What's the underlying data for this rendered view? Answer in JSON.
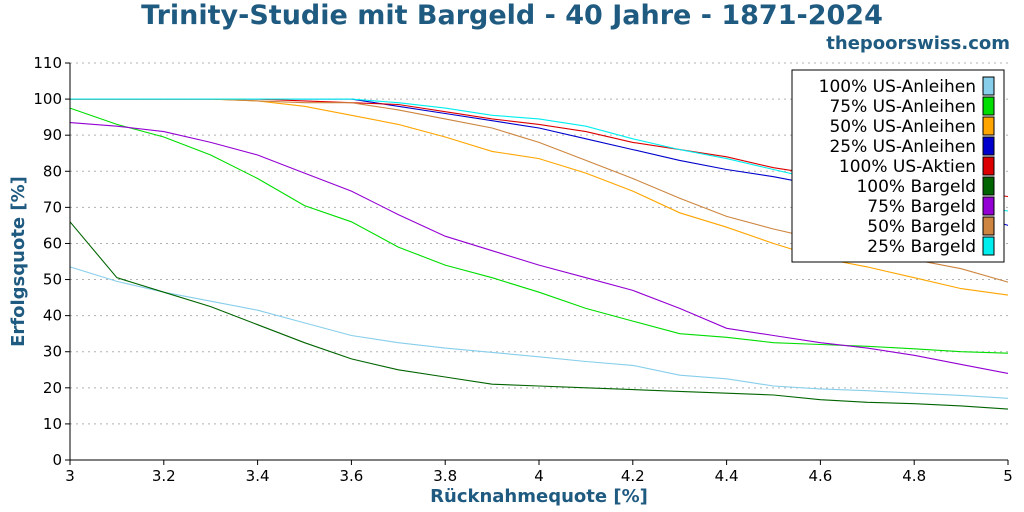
{
  "header": {
    "title": "Trinity-Studie mit Bargeld - 40 Jahre - 1871-2024",
    "source": "thepoorswiss.com"
  },
  "chart_data": {
    "type": "line",
    "title": "Trinity-Studie mit Bargeld - 40 Jahre - 1871-2024",
    "xlabel": "Rücknahmequote [%]",
    "ylabel": "Erfolgsquote [%]",
    "xlim": [
      3,
      5
    ],
    "ylim": [
      0,
      110
    ],
    "xticks": [
      3,
      3.2,
      3.4,
      3.6,
      3.8,
      4,
      4.2,
      4.4,
      4.6,
      4.8,
      5
    ],
    "xtick_labels": [
      "3",
      "3.2",
      "3.4",
      "3.6",
      "3.8",
      "4",
      "4.2",
      "4.4",
      "4.6",
      "4.8",
      "5"
    ],
    "yticks": [
      0,
      10,
      20,
      30,
      40,
      50,
      60,
      70,
      80,
      90,
      100,
      110
    ],
    "ytick_labels": [
      "0",
      "10",
      "20",
      "30",
      "40",
      "50",
      "60",
      "70",
      "80",
      "90",
      "100",
      "110"
    ],
    "grid": "horizontal dotted",
    "legend_position": "top-right",
    "x": [
      3.0,
      3.1,
      3.2,
      3.3,
      3.4,
      3.5,
      3.6,
      3.7,
      3.8,
      3.9,
      4.0,
      4.1,
      4.2,
      4.3,
      4.4,
      4.5,
      4.6,
      4.7,
      4.8,
      4.9,
      5.0
    ],
    "series": [
      {
        "name": "100% US-Anleihen",
        "color": "#87ceeb",
        "values": [
          53.5,
          49.5,
          46.5,
          44,
          41.5,
          38,
          34.5,
          32.5,
          31,
          29.8,
          28.6,
          27.3,
          26.2,
          23.5,
          22.5,
          20.5,
          19.7,
          19.2,
          18.5,
          17.9,
          17.1
        ]
      },
      {
        "name": "75% US-Anleihen",
        "color": "#00dd00",
        "values": [
          97.5,
          93,
          89.5,
          84.5,
          78,
          70.5,
          66,
          59,
          54,
          50.5,
          46.5,
          42,
          38.5,
          35,
          34,
          32.5,
          32,
          31.5,
          30.8,
          30,
          29.6
        ]
      },
      {
        "name": "50% US-Anleihen",
        "color": "#ffa500",
        "values": [
          100,
          100,
          100,
          100,
          99.5,
          98,
          95.5,
          93,
          89.5,
          85.5,
          83.5,
          79.5,
          74.5,
          68.5,
          64.5,
          60,
          56,
          53.5,
          50.5,
          47.5,
          45.7
        ]
      },
      {
        "name": "25% US-Anleihen",
        "color": "#0000cd",
        "values": [
          100,
          100,
          100,
          100,
          100,
          100,
          100,
          98,
          96,
          94,
          92,
          89,
          86,
          83,
          80.5,
          78.5,
          76,
          74,
          71.5,
          69,
          65
        ]
      },
      {
        "name": "100% US-Aktien",
        "color": "#dd0000",
        "values": [
          100,
          100,
          100,
          100,
          100,
          99.5,
          99,
          98.5,
          96.5,
          94.5,
          93,
          91,
          88,
          86,
          84,
          81,
          79,
          77,
          76,
          74.5,
          73
        ]
      },
      {
        "name": "100% Bargeld",
        "color": "#006400",
        "values": [
          66,
          50.5,
          46.5,
          42.5,
          37.5,
          32.5,
          28,
          25,
          23,
          21,
          20.5,
          20,
          19.5,
          19,
          18.5,
          18,
          16.7,
          16,
          15.6,
          15,
          14.1
        ]
      },
      {
        "name": "75% Bargeld",
        "color": "#9400d3",
        "values": [
          93.5,
          92.5,
          91,
          88,
          84.5,
          79.5,
          74.5,
          68,
          62,
          58,
          54,
          50.5,
          47,
          42,
          36.5,
          34.5,
          32.5,
          31,
          29,
          26.5,
          24
        ]
      },
      {
        "name": "50% Bargeld",
        "color": "#cd853f",
        "values": [
          100,
          100,
          100,
          100,
          99.5,
          99,
          99,
          97,
          94.5,
          92,
          88,
          83,
          78,
          72.5,
          67.5,
          64,
          61,
          58,
          55.5,
          53,
          49.3
        ]
      },
      {
        "name": "25% Bargeld",
        "color": "#00eeee",
        "values": [
          100,
          100,
          100,
          100,
          100,
          100,
          100,
          99,
          97.5,
          95.5,
          94.5,
          92.5,
          89,
          86,
          83.5,
          80.5,
          77.5,
          75.5,
          73,
          71,
          69
        ]
      }
    ]
  }
}
